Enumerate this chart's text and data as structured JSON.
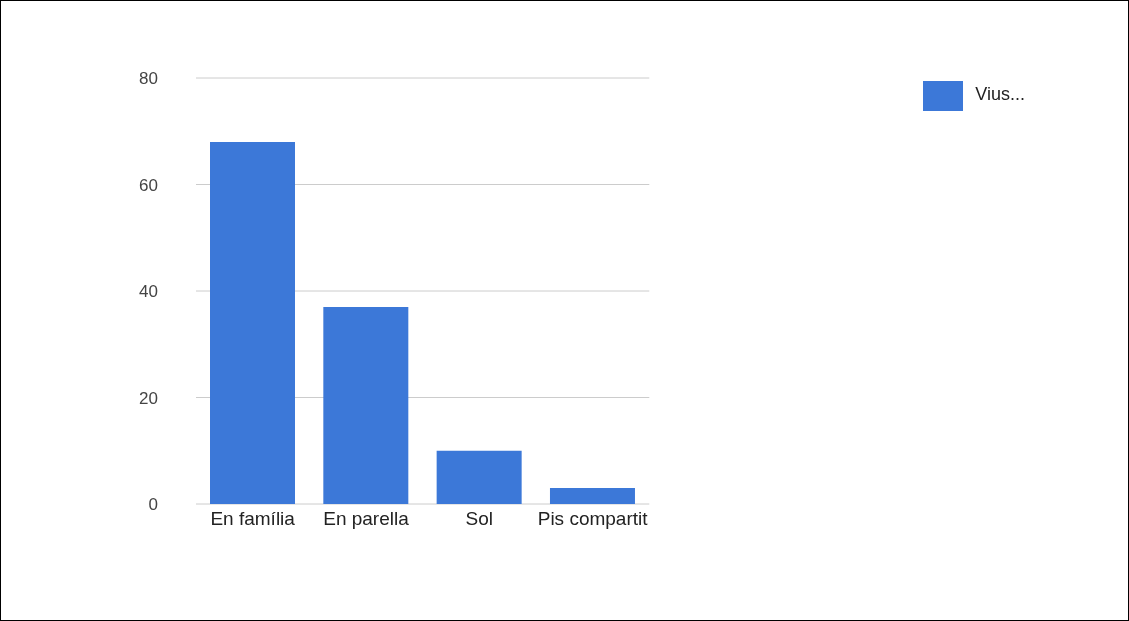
{
  "chart_data": {
    "type": "bar",
    "categories": [
      "En família",
      "En parella",
      "Sol",
      "Pis compartit"
    ],
    "series": [
      {
        "name": "Vius...",
        "color": "#3c78d8",
        "values": [
          68,
          37,
          10,
          3
        ]
      }
    ],
    "ylim": [
      0,
      80
    ],
    "yticks": [
      0,
      20,
      40,
      60,
      80
    ],
    "grid": "y",
    "legend": "top right"
  }
}
